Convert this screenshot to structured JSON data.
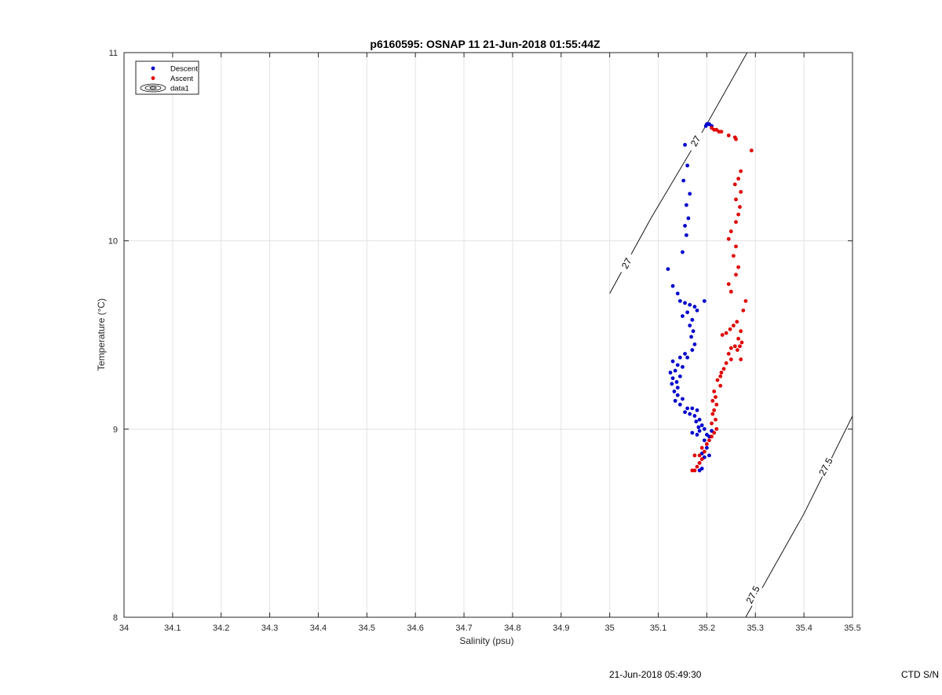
{
  "chart_data": {
    "type": "scatter",
    "title": "p6160595: OSNAP 11 21-Jun-2018 01:55:44Z",
    "xlabel": "Salinity (psu)",
    "ylabel": "Temperature (°C)",
    "xlim": [
      34,
      35.5
    ],
    "ylim": [
      8,
      11
    ],
    "xticks": [
      "34",
      "34.1",
      "34.2",
      "34.3",
      "34.4",
      "34.5",
      "34.6",
      "34.7",
      "34.8",
      "34.9",
      "35",
      "35.1",
      "35.2",
      "35.3",
      "35.4",
      "35.5"
    ],
    "xtick_values": [
      34,
      34.1,
      34.2,
      34.3,
      34.4,
      34.5,
      34.6,
      34.7,
      34.8,
      34.9,
      35,
      35.1,
      35.2,
      35.3,
      35.4,
      35.5
    ],
    "yticks": [
      "8",
      "9",
      "10",
      "11"
    ],
    "ytick_values": [
      8,
      9,
      10,
      11
    ],
    "grid": true,
    "legend_position": "top-left",
    "legend": [
      {
        "label": "Descent",
        "marker": "dot",
        "color": "#0000cc"
      },
      {
        "label": "Ascent",
        "marker": "dot",
        "color": "#e00000"
      },
      {
        "label": "data1",
        "marker": "contour",
        "color": "#000000"
      }
    ],
    "isopycnals": [
      {
        "label": "27",
        "points": [
          [
            35.0,
            9.72
          ],
          [
            35.085,
            10.12
          ],
          [
            35.2,
            10.62
          ],
          [
            35.283,
            11.0
          ]
        ],
        "label_positions": [
          [
            35.035,
            9.88
          ],
          [
            35.177,
            10.53
          ]
        ]
      },
      {
        "label": "27.5",
        "points": [
          [
            35.28,
            8.0
          ],
          [
            35.4,
            8.55
          ],
          [
            35.5,
            9.07
          ]
        ],
        "label_positions": [
          [
            35.295,
            8.12
          ],
          [
            35.445,
            8.8
          ]
        ]
      }
    ],
    "series": [
      {
        "name": "Descent",
        "color": "#0000cc",
        "points": [
          [
            35.2,
            10.62
          ],
          [
            35.205,
            10.62
          ],
          [
            35.198,
            10.61
          ],
          [
            35.203,
            10.62
          ],
          [
            35.21,
            10.61
          ],
          [
            35.155,
            10.51
          ],
          [
            35.16,
            10.4
          ],
          [
            35.152,
            10.32
          ],
          [
            35.165,
            10.25
          ],
          [
            35.158,
            10.19
          ],
          [
            35.162,
            10.12
          ],
          [
            35.155,
            10.08
          ],
          [
            35.158,
            10.03
          ],
          [
            35.15,
            9.94
          ],
          [
            35.12,
            9.85
          ],
          [
            35.13,
            9.76
          ],
          [
            35.14,
            9.72
          ],
          [
            35.145,
            9.68
          ],
          [
            35.155,
            9.67
          ],
          [
            35.165,
            9.66
          ],
          [
            35.175,
            9.65
          ],
          [
            35.195,
            9.68
          ],
          [
            35.18,
            9.63
          ],
          [
            35.16,
            9.62
          ],
          [
            35.15,
            9.6
          ],
          [
            35.17,
            9.58
          ],
          [
            35.165,
            9.55
          ],
          [
            35.172,
            9.52
          ],
          [
            35.168,
            9.49
          ],
          [
            35.175,
            9.45
          ],
          [
            35.17,
            9.42
          ],
          [
            35.155,
            9.4
          ],
          [
            35.145,
            9.38
          ],
          [
            35.16,
            9.38
          ],
          [
            35.13,
            9.36
          ],
          [
            35.14,
            9.34
          ],
          [
            35.15,
            9.33
          ],
          [
            35.135,
            9.31
          ],
          [
            35.125,
            9.3
          ],
          [
            35.145,
            9.28
          ],
          [
            35.13,
            9.27
          ],
          [
            35.138,
            9.25
          ],
          [
            35.128,
            9.24
          ],
          [
            35.14,
            9.22
          ],
          [
            35.133,
            9.2
          ],
          [
            35.14,
            9.18
          ],
          [
            35.15,
            9.16
          ],
          [
            35.135,
            9.15
          ],
          [
            35.145,
            9.13
          ],
          [
            35.16,
            9.11
          ],
          [
            35.17,
            9.11
          ],
          [
            35.18,
            9.1
          ],
          [
            35.155,
            9.09
          ],
          [
            35.165,
            9.08
          ],
          [
            35.175,
            9.07
          ],
          [
            35.185,
            9.05
          ],
          [
            35.178,
            9.04
          ],
          [
            35.19,
            9.02
          ],
          [
            35.183,
            9.01
          ],
          [
            35.195,
            9.0
          ],
          [
            35.17,
            8.98
          ],
          [
            35.18,
            8.97
          ],
          [
            35.185,
            8.99
          ],
          [
            35.2,
            8.97
          ],
          [
            35.21,
            8.99
          ],
          [
            35.205,
            8.96
          ],
          [
            35.195,
            8.94
          ],
          [
            35.2,
            8.9
          ],
          [
            35.19,
            8.87
          ],
          [
            35.205,
            8.86
          ],
          [
            35.195,
            8.85
          ],
          [
            35.185,
            8.82
          ],
          [
            35.19,
            8.79
          ],
          [
            35.185,
            8.78
          ]
        ]
      },
      {
        "name": "Ascent",
        "color": "#e00000",
        "points": [
          [
            35.21,
            10.6
          ],
          [
            35.215,
            10.59
          ],
          [
            35.22,
            10.59
          ],
          [
            35.225,
            10.58
          ],
          [
            35.23,
            10.58
          ],
          [
            35.245,
            10.56
          ],
          [
            35.258,
            10.55
          ],
          [
            35.26,
            10.54
          ],
          [
            35.292,
            10.48
          ],
          [
            35.27,
            10.37
          ],
          [
            35.265,
            10.33
          ],
          [
            35.258,
            10.3
          ],
          [
            35.27,
            10.26
          ],
          [
            35.26,
            10.22
          ],
          [
            35.268,
            10.18
          ],
          [
            35.265,
            10.14
          ],
          [
            35.26,
            10.1
          ],
          [
            35.25,
            10.05
          ],
          [
            35.245,
            10.01
          ],
          [
            35.26,
            9.97
          ],
          [
            35.255,
            9.92
          ],
          [
            35.265,
            9.86
          ],
          [
            35.26,
            9.82
          ],
          [
            35.245,
            9.77
          ],
          [
            35.25,
            9.73
          ],
          [
            35.28,
            9.68
          ],
          [
            35.275,
            9.63
          ],
          [
            35.262,
            9.57
          ],
          [
            35.255,
            9.55
          ],
          [
            35.248,
            9.53
          ],
          [
            35.24,
            9.51
          ],
          [
            35.232,
            9.5
          ],
          [
            35.27,
            9.52
          ],
          [
            35.265,
            9.48
          ],
          [
            35.272,
            9.46
          ],
          [
            35.258,
            9.44
          ],
          [
            35.268,
            9.44
          ],
          [
            35.25,
            9.43
          ],
          [
            35.263,
            9.42
          ],
          [
            35.245,
            9.4
          ],
          [
            35.25,
            9.37
          ],
          [
            35.24,
            9.35
          ],
          [
            35.27,
            9.37
          ],
          [
            35.235,
            9.32
          ],
          [
            35.23,
            9.3
          ],
          [
            35.228,
            9.28
          ],
          [
            35.222,
            9.26
          ],
          [
            35.228,
            9.23
          ],
          [
            35.215,
            9.2
          ],
          [
            35.218,
            9.17
          ],
          [
            35.212,
            9.15
          ],
          [
            35.22,
            9.13
          ],
          [
            35.215,
            9.1
          ],
          [
            35.212,
            9.08
          ],
          [
            35.218,
            9.05
          ],
          [
            35.21,
            9.03
          ],
          [
            35.22,
            9.0
          ],
          [
            35.215,
            8.98
          ],
          [
            35.21,
            8.96
          ],
          [
            35.205,
            8.94
          ],
          [
            35.2,
            8.92
          ],
          [
            35.19,
            8.9
          ],
          [
            35.195,
            8.88
          ],
          [
            35.185,
            8.86
          ],
          [
            35.175,
            8.86
          ],
          [
            35.19,
            8.84
          ],
          [
            35.185,
            8.82
          ],
          [
            35.18,
            8.8
          ],
          [
            35.175,
            8.78
          ],
          [
            35.17,
            8.78
          ]
        ]
      }
    ]
  },
  "footer": {
    "timestamp": "21-Jun-2018 05:49:30",
    "serial": "CTD S/N"
  }
}
